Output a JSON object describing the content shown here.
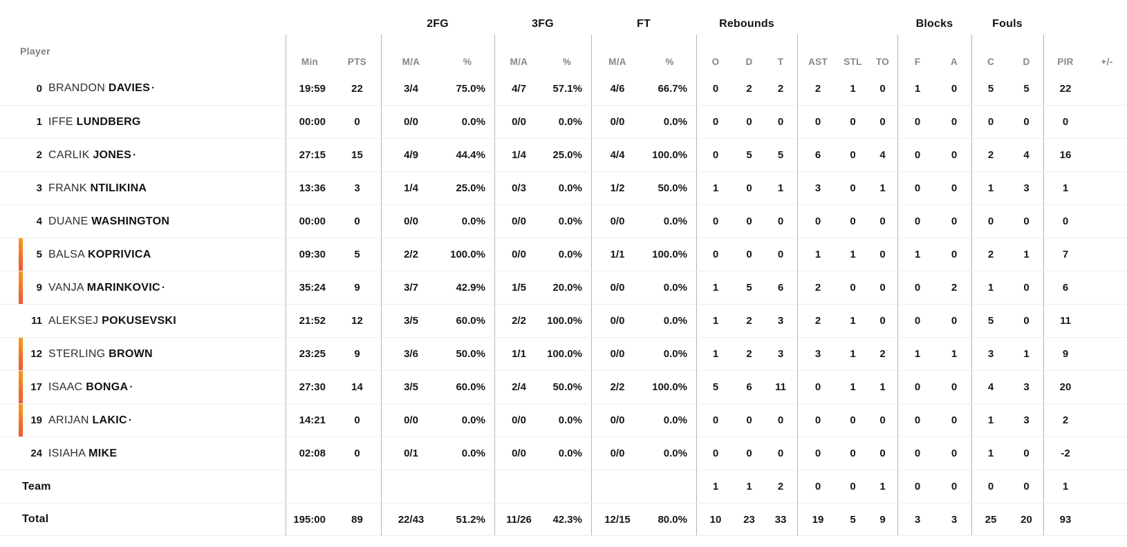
{
  "table": {
    "groups": {
      "fg2": "2FG",
      "fg3": "3FG",
      "ft": "FT",
      "rebounds": "Rebounds",
      "blocks": "Blocks",
      "fouls": "Fouls"
    },
    "columns": {
      "player": "Player",
      "min": "Min",
      "pts": "PTS",
      "ma": "M/A",
      "pct": "%",
      "reb_o": "O",
      "reb_d": "D",
      "reb_t": "T",
      "ast": "AST",
      "stl": "STL",
      "to": "TO",
      "blk_f": "F",
      "blk_a": "A",
      "foul_c": "C",
      "foul_d": "D",
      "pir": "PIR",
      "pm": "+/-"
    },
    "rows": [
      {
        "number": "0",
        "first": "BRANDON",
        "last": "DAVIES",
        "starter": true,
        "on_court": false,
        "min": "19:59",
        "pts": "22",
        "fg2_ma": "3/4",
        "fg2_pct": "75.0%",
        "fg3_ma": "4/7",
        "fg3_pct": "57.1%",
        "ft_ma": "4/6",
        "ft_pct": "66.7%",
        "reb_o": "0",
        "reb_d": "2",
        "reb_t": "2",
        "ast": "2",
        "stl": "1",
        "to": "0",
        "blk_f": "1",
        "blk_a": "0",
        "foul_c": "5",
        "foul_d": "5",
        "pir": "22",
        "pm": ""
      },
      {
        "number": "1",
        "first": "IFFE",
        "last": "LUNDBERG",
        "starter": false,
        "on_court": false,
        "min": "00:00",
        "pts": "0",
        "fg2_ma": "0/0",
        "fg2_pct": "0.0%",
        "fg3_ma": "0/0",
        "fg3_pct": "0.0%",
        "ft_ma": "0/0",
        "ft_pct": "0.0%",
        "reb_o": "0",
        "reb_d": "0",
        "reb_t": "0",
        "ast": "0",
        "stl": "0",
        "to": "0",
        "blk_f": "0",
        "blk_a": "0",
        "foul_c": "0",
        "foul_d": "0",
        "pir": "0",
        "pm": ""
      },
      {
        "number": "2",
        "first": "CARLIK",
        "last": "JONES",
        "starter": true,
        "on_court": false,
        "min": "27:15",
        "pts": "15",
        "fg2_ma": "4/9",
        "fg2_pct": "44.4%",
        "fg3_ma": "1/4",
        "fg3_pct": "25.0%",
        "ft_ma": "4/4",
        "ft_pct": "100.0%",
        "reb_o": "0",
        "reb_d": "5",
        "reb_t": "5",
        "ast": "6",
        "stl": "0",
        "to": "4",
        "blk_f": "0",
        "blk_a": "0",
        "foul_c": "2",
        "foul_d": "4",
        "pir": "16",
        "pm": ""
      },
      {
        "number": "3",
        "first": "FRANK",
        "last": "NTILIKINA",
        "starter": false,
        "on_court": false,
        "min": "13:36",
        "pts": "3",
        "fg2_ma": "1/4",
        "fg2_pct": "25.0%",
        "fg3_ma": "0/3",
        "fg3_pct": "0.0%",
        "ft_ma": "1/2",
        "ft_pct": "50.0%",
        "reb_o": "1",
        "reb_d": "0",
        "reb_t": "1",
        "ast": "3",
        "stl": "0",
        "to": "1",
        "blk_f": "0",
        "blk_a": "0",
        "foul_c": "1",
        "foul_d": "3",
        "pir": "1",
        "pm": ""
      },
      {
        "number": "4",
        "first": "DUANE",
        "last": "WASHINGTON",
        "starter": false,
        "on_court": false,
        "min": "00:00",
        "pts": "0",
        "fg2_ma": "0/0",
        "fg2_pct": "0.0%",
        "fg3_ma": "0/0",
        "fg3_pct": "0.0%",
        "ft_ma": "0/0",
        "ft_pct": "0.0%",
        "reb_o": "0",
        "reb_d": "0",
        "reb_t": "0",
        "ast": "0",
        "stl": "0",
        "to": "0",
        "blk_f": "0",
        "blk_a": "0",
        "foul_c": "0",
        "foul_d": "0",
        "pir": "0",
        "pm": ""
      },
      {
        "number": "5",
        "first": "BALSA",
        "last": "KOPRIVICA",
        "starter": false,
        "on_court": true,
        "min": "09:30",
        "pts": "5",
        "fg2_ma": "2/2",
        "fg2_pct": "100.0%",
        "fg3_ma": "0/0",
        "fg3_pct": "0.0%",
        "ft_ma": "1/1",
        "ft_pct": "100.0%",
        "reb_o": "0",
        "reb_d": "0",
        "reb_t": "0",
        "ast": "1",
        "stl": "1",
        "to": "0",
        "blk_f": "1",
        "blk_a": "0",
        "foul_c": "2",
        "foul_d": "1",
        "pir": "7",
        "pm": ""
      },
      {
        "number": "9",
        "first": "VANJA",
        "last": "MARINKOVIC",
        "starter": true,
        "on_court": true,
        "min": "35:24",
        "pts": "9",
        "fg2_ma": "3/7",
        "fg2_pct": "42.9%",
        "fg3_ma": "1/5",
        "fg3_pct": "20.0%",
        "ft_ma": "0/0",
        "ft_pct": "0.0%",
        "reb_o": "1",
        "reb_d": "5",
        "reb_t": "6",
        "ast": "2",
        "stl": "0",
        "to": "0",
        "blk_f": "0",
        "blk_a": "2",
        "foul_c": "1",
        "foul_d": "0",
        "pir": "6",
        "pm": ""
      },
      {
        "number": "11",
        "first": "ALEKSEJ",
        "last": "POKUSEVSKI",
        "starter": false,
        "on_court": false,
        "min": "21:52",
        "pts": "12",
        "fg2_ma": "3/5",
        "fg2_pct": "60.0%",
        "fg3_ma": "2/2",
        "fg3_pct": "100.0%",
        "ft_ma": "0/0",
        "ft_pct": "0.0%",
        "reb_o": "1",
        "reb_d": "2",
        "reb_t": "3",
        "ast": "2",
        "stl": "1",
        "to": "0",
        "blk_f": "0",
        "blk_a": "0",
        "foul_c": "5",
        "foul_d": "0",
        "pir": "11",
        "pm": ""
      },
      {
        "number": "12",
        "first": "STERLING",
        "last": "BROWN",
        "starter": false,
        "on_court": true,
        "min": "23:25",
        "pts": "9",
        "fg2_ma": "3/6",
        "fg2_pct": "50.0%",
        "fg3_ma": "1/1",
        "fg3_pct": "100.0%",
        "ft_ma": "0/0",
        "ft_pct": "0.0%",
        "reb_o": "1",
        "reb_d": "2",
        "reb_t": "3",
        "ast": "3",
        "stl": "1",
        "to": "2",
        "blk_f": "1",
        "blk_a": "1",
        "foul_c": "3",
        "foul_d": "1",
        "pir": "9",
        "pm": ""
      },
      {
        "number": "17",
        "first": "ISAAC",
        "last": "BONGA",
        "starter": true,
        "on_court": true,
        "min": "27:30",
        "pts": "14",
        "fg2_ma": "3/5",
        "fg2_pct": "60.0%",
        "fg3_ma": "2/4",
        "fg3_pct": "50.0%",
        "ft_ma": "2/2",
        "ft_pct": "100.0%",
        "reb_o": "5",
        "reb_d": "6",
        "reb_t": "11",
        "ast": "0",
        "stl": "1",
        "to": "1",
        "blk_f": "0",
        "blk_a": "0",
        "foul_c": "4",
        "foul_d": "3",
        "pir": "20",
        "pm": ""
      },
      {
        "number": "19",
        "first": "ARIJAN",
        "last": "LAKIC",
        "starter": true,
        "on_court": true,
        "min": "14:21",
        "pts": "0",
        "fg2_ma": "0/0",
        "fg2_pct": "0.0%",
        "fg3_ma": "0/0",
        "fg3_pct": "0.0%",
        "ft_ma": "0/0",
        "ft_pct": "0.0%",
        "reb_o": "0",
        "reb_d": "0",
        "reb_t": "0",
        "ast": "0",
        "stl": "0",
        "to": "0",
        "blk_f": "0",
        "blk_a": "0",
        "foul_c": "1",
        "foul_d": "3",
        "pir": "2",
        "pm": ""
      },
      {
        "number": "24",
        "first": "ISIAHA",
        "last": "MIKE",
        "starter": false,
        "on_court": false,
        "min": "02:08",
        "pts": "0",
        "fg2_ma": "0/1",
        "fg2_pct": "0.0%",
        "fg3_ma": "0/0",
        "fg3_pct": "0.0%",
        "ft_ma": "0/0",
        "ft_pct": "0.0%",
        "reb_o": "0",
        "reb_d": "0",
        "reb_t": "0",
        "ast": "0",
        "stl": "0",
        "to": "0",
        "blk_f": "0",
        "blk_a": "0",
        "foul_c": "1",
        "foul_d": "0",
        "pir": "-2",
        "pm": ""
      },
      {
        "label": "Team",
        "on_court": false,
        "min": "",
        "pts": "",
        "fg2_ma": "",
        "fg2_pct": "",
        "fg3_ma": "",
        "fg3_pct": "",
        "ft_ma": "",
        "ft_pct": "",
        "reb_o": "1",
        "reb_d": "1",
        "reb_t": "2",
        "ast": "0",
        "stl": "0",
        "to": "1",
        "blk_f": "0",
        "blk_a": "0",
        "foul_c": "0",
        "foul_d": "0",
        "pir": "1",
        "pm": ""
      },
      {
        "label": "Total",
        "on_court": false,
        "min": "195:00",
        "pts": "89",
        "fg2_ma": "22/43",
        "fg2_pct": "51.2%",
        "fg3_ma": "11/26",
        "fg3_pct": "42.3%",
        "ft_ma": "12/15",
        "ft_pct": "80.0%",
        "reb_o": "10",
        "reb_d": "23",
        "reb_t": "33",
        "ast": "19",
        "stl": "5",
        "to": "9",
        "blk_f": "3",
        "blk_a": "3",
        "foul_c": "25",
        "foul_d": "20",
        "pir": "93",
        "pm": ""
      }
    ]
  },
  "icons": {
    "starter_mark": "·",
    "on_court_indicator": "orange-bar"
  },
  "colors": {
    "on_court_top": "#f8991d",
    "on_court_bottom": "#f05a36",
    "header_gray": "#85858b",
    "ink": "#161619",
    "divider": "#b4b4b8",
    "row_line": "#ededef"
  }
}
